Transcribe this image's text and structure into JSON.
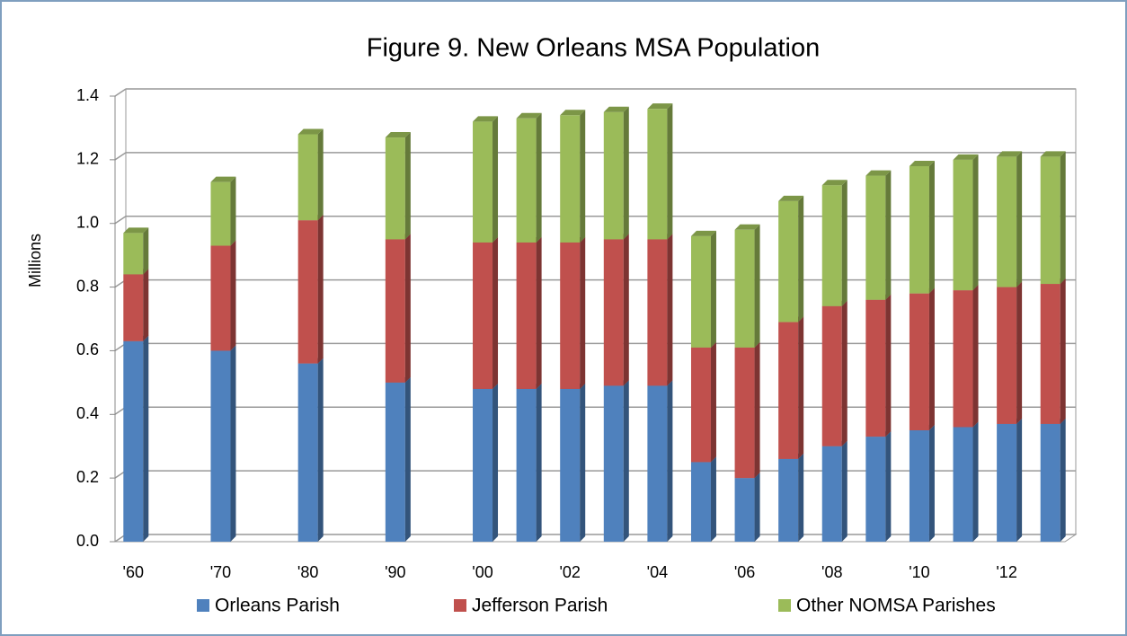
{
  "chart_data": {
    "type": "bar",
    "stacked": true,
    "title": "Figure 9. New Orleans MSA Population",
    "y_label": "Millions",
    "categories": [
      "'60",
      null,
      "'70",
      null,
      "'80",
      null,
      "'90",
      null,
      "'00",
      null,
      "'02",
      null,
      "'04",
      null,
      "'06",
      null,
      "'08",
      null,
      "'10",
      null,
      "'12",
      null
    ],
    "series": [
      {
        "name": "Orleans Parish",
        "color": "#4f81bd",
        "values": [
          0.63,
          null,
          0.6,
          null,
          0.56,
          null,
          0.5,
          null,
          0.48,
          0.48,
          0.48,
          0.49,
          0.49,
          0.25,
          0.2,
          0.26,
          0.3,
          0.33,
          0.35,
          0.36,
          0.37,
          0.37
        ]
      },
      {
        "name": "Jefferson Parish",
        "color": "#c0504d",
        "values": [
          0.21,
          null,
          0.33,
          null,
          0.45,
          null,
          0.45,
          null,
          0.46,
          0.46,
          0.46,
          0.46,
          0.46,
          0.36,
          0.41,
          0.43,
          0.44,
          0.43,
          0.43,
          0.43,
          0.43,
          0.44
        ]
      },
      {
        "name": "Other NOMSA Parishes",
        "color": "#9bbb59",
        "values": [
          0.13,
          null,
          0.2,
          null,
          0.27,
          null,
          0.32,
          null,
          0.38,
          0.39,
          0.4,
          0.4,
          0.41,
          0.35,
          0.37,
          0.38,
          0.38,
          0.39,
          0.4,
          0.41,
          0.41,
          0.4
        ]
      }
    ],
    "ylim": [
      0,
      1.4
    ],
    "yticks": [
      {
        "value": 0,
        "label": "0.0"
      },
      0.2,
      0.4,
      0.6,
      0.8,
      {
        "value": 1,
        "label": "1.0"
      },
      1.2,
      1.4
    ],
    "grid": true,
    "legend": "bottom"
  }
}
